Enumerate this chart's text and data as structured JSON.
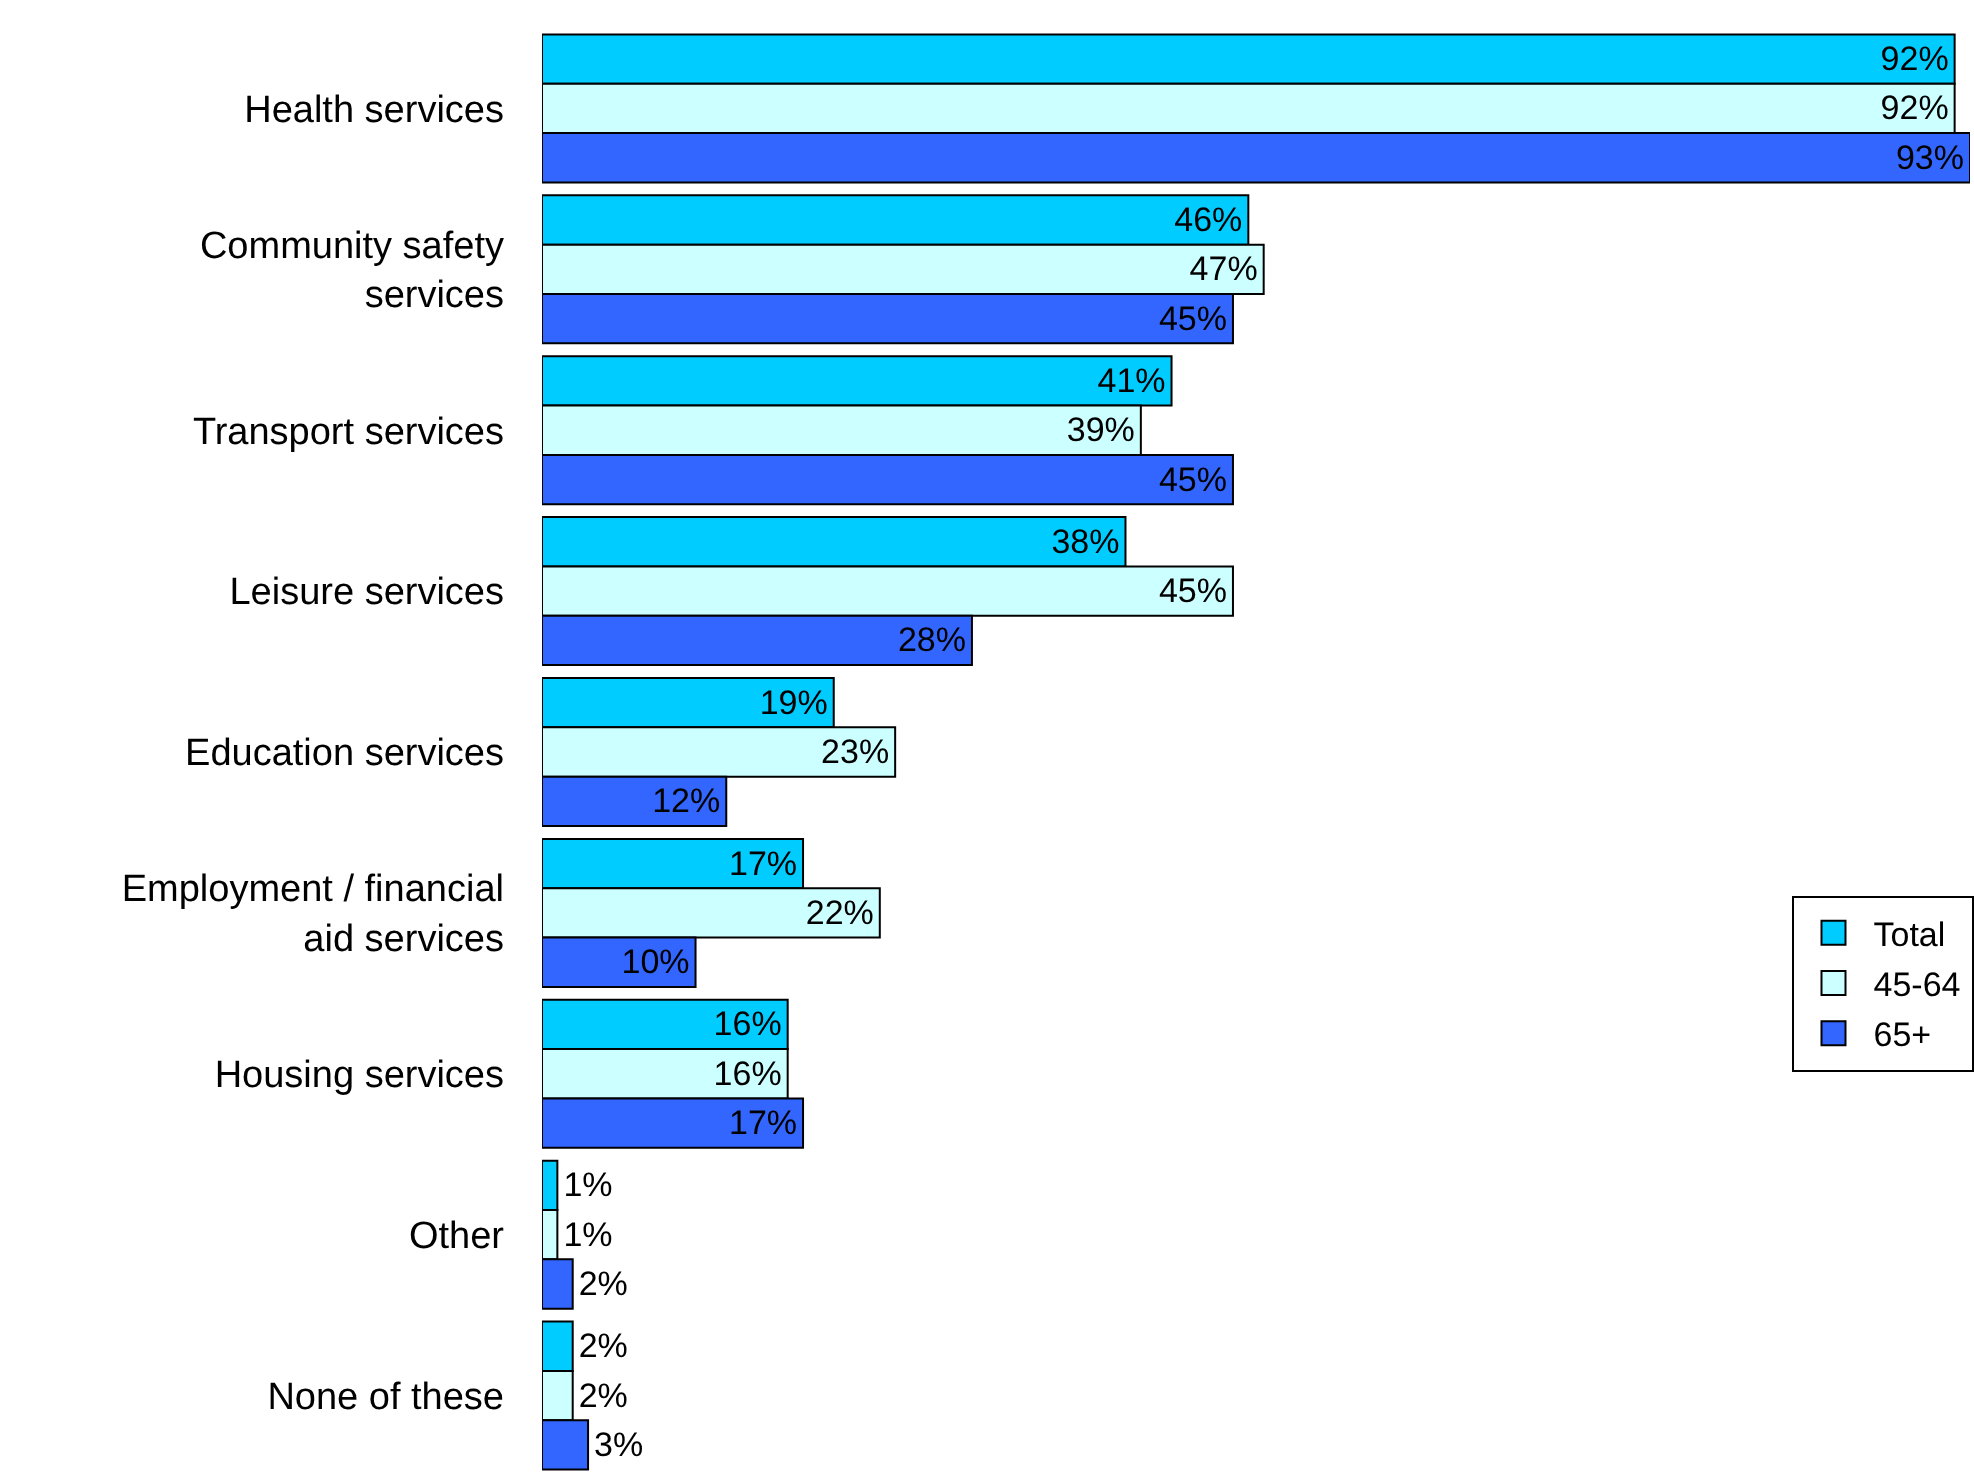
{
  "chart_data": {
    "type": "bar",
    "orientation": "horizontal",
    "legend": "right",
    "categories": [
      "Health services",
      "Community safety services",
      "Transport services",
      "Leisure services",
      "Education services",
      "Employment / financial aid services",
      "Housing services",
      "Other",
      "None of these"
    ],
    "series": [
      {
        "name": "Total",
        "color": "#00ccff",
        "values": [
          92,
          46,
          41,
          38,
          19,
          17,
          16,
          1,
          2
        ],
        "value_labels": [
          "92%",
          "46%",
          "41%",
          "38%",
          "19%",
          "17%",
          "16%",
          "1%",
          "2%"
        ]
      },
      {
        "name": "45-64",
        "color": "#ccffff",
        "values": [
          92,
          47,
          39,
          45,
          23,
          22,
          16,
          1,
          2
        ],
        "value_labels": [
          "92%",
          "47%",
          "39%",
          "45%",
          "23%",
          "22%",
          "16%",
          "1%",
          "2%"
        ]
      },
      {
        "name": "65+",
        "color": "#3366ff",
        "values": [
          93,
          45,
          45,
          28,
          12,
          10,
          17,
          2,
          3
        ],
        "value_labels": [
          "93%",
          "45%",
          "45%",
          "28%",
          "12%",
          "10%",
          "17%",
          "2%",
          "3%"
        ]
      }
    ]
  }
}
